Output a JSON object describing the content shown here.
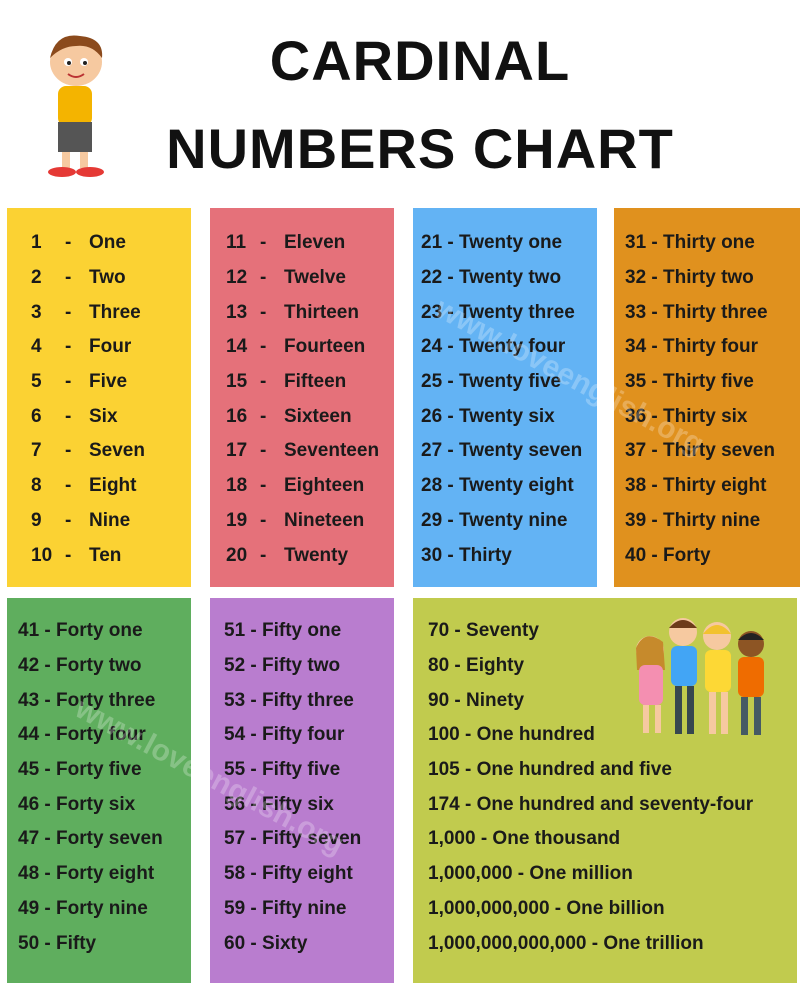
{
  "title": {
    "line1": "CARDINAL",
    "line2": "NUMBERS CHART"
  },
  "watermark": "www.loveenglish.org",
  "colors": {
    "yellow": "#fbd233",
    "red": "#e5717a",
    "blue": "#63b3f4",
    "orange": "#e0911e",
    "green": "#5fae5e",
    "purple": "#b97dcf",
    "olive": "#c1cb4e"
  },
  "col1": [
    [
      "1",
      "-",
      "One"
    ],
    [
      "2",
      "-",
      "Two"
    ],
    [
      "3",
      "-",
      "Three"
    ],
    [
      "4",
      "-",
      "Four"
    ],
    [
      "5",
      "-",
      "Five"
    ],
    [
      "6",
      "-",
      "Six"
    ],
    [
      "7",
      "-",
      "Seven"
    ],
    [
      "8",
      "-",
      "Eight"
    ],
    [
      "9",
      "-",
      "Nine"
    ],
    [
      "10",
      "-",
      "Ten"
    ]
  ],
  "col2": [
    [
      "11",
      "-",
      "Eleven"
    ],
    [
      "12",
      "-",
      "Twelve"
    ],
    [
      "13",
      "-",
      "Thirteen"
    ],
    [
      "14",
      "-",
      "Fourteen"
    ],
    [
      "15",
      "-",
      "Fifteen"
    ],
    [
      "16",
      "-",
      "Sixteen"
    ],
    [
      "17",
      "-",
      "Seventeen"
    ],
    [
      "18",
      "-",
      "Eighteen"
    ],
    [
      "19",
      "-",
      "Nineteen"
    ],
    [
      "20",
      "-",
      "Twenty"
    ]
  ],
  "col3": [
    "21 - Twenty one",
    "22 - Twenty two",
    "23 - Twenty three",
    "24 - Twenty four",
    "25 - Twenty five",
    "26 - Twenty six",
    "27 - Twenty seven",
    "28 - Twenty eight",
    "29 - Twenty nine",
    "30 - Thirty"
  ],
  "col4": [
    "31 - Thirty one",
    "32 - Thirty two",
    "33 - Thirty three",
    "34 - Thirty four",
    "35 - Thirty five",
    "36 - Thirty six",
    "37 - Thirty seven",
    "38 - Thirty eight",
    "39 - Thirty nine",
    "40 - Forty"
  ],
  "col5": [
    "41 - Forty one",
    "42 - Forty two",
    "43 - Forty three",
    "44 - Forty four",
    "45 - Forty five",
    "46 - Forty six",
    "47 - Forty seven",
    "48 - Forty eight",
    "49 - Forty nine",
    "50 - Fifty"
  ],
  "col6": [
    "51 - Fifty one",
    "52 - Fifty two",
    "53 - Fifty three",
    "54 - Fifty four",
    "55 - Fifty five",
    "56 - Fifty six",
    "57 - Fifty seven",
    "58 - Fifty eight",
    "59 - Fifty nine",
    "60 - Sixty"
  ],
  "col7": [
    "70 - Seventy",
    "80 - Eighty",
    "90 - Ninety",
    "100 - One hundred",
    "105 - One hundred and five",
    "174 - One hundred and seventy-four",
    "1,000 - One thousand",
    "1,000,000 - One million",
    "1,000,000,000 - One billion",
    "1,000,000,000,000 - One trillion"
  ]
}
